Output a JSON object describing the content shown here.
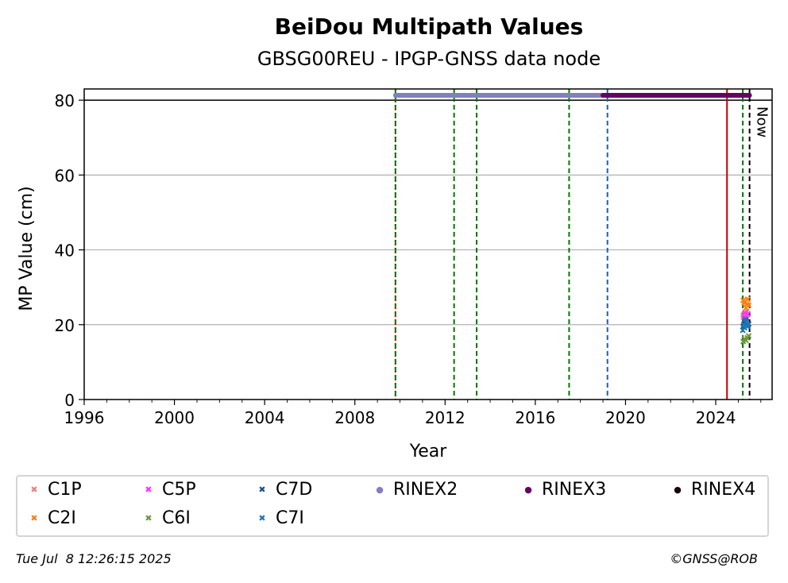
{
  "chart_data": {
    "type": "scatter",
    "title": "BeiDou Multipath Values",
    "subtitle": "GBSG00REU - IPGP-GNSS data node",
    "xlabel": "Year",
    "ylabel": "MP Value (cm)",
    "xlim": [
      1996,
      2026.5
    ],
    "ylim": [
      0,
      83
    ],
    "x_ticks": [
      "1996",
      "2000",
      "2004",
      "2008",
      "2012",
      "2016",
      "2020",
      "2024"
    ],
    "y_ticks": [
      "0",
      "20",
      "40",
      "60",
      "80"
    ],
    "grid": "y",
    "now_label": "Now",
    "vertical_lines": [
      {
        "x": 2009.8,
        "color": "#cc0000",
        "style": "dotted"
      },
      {
        "x": 2009.8,
        "color": "#007700",
        "style": "dashed"
      },
      {
        "x": 2012.4,
        "color": "#007700",
        "style": "dashed"
      },
      {
        "x": 2013.4,
        "color": "#007700",
        "style": "dashed"
      },
      {
        "x": 2017.5,
        "color": "#007700",
        "style": "dashed"
      },
      {
        "x": 2019.2,
        "color": "#1f5fa8",
        "style": "dashed"
      },
      {
        "x": 2024.5,
        "color": "#cc0000",
        "style": "solid"
      },
      {
        "x": 2025.2,
        "color": "#007700",
        "style": "dashed"
      },
      {
        "x": 2025.5,
        "color": "#000000",
        "style": "dashed"
      }
    ],
    "horizontal_lines": [
      {
        "y": 80,
        "color": "#000000"
      }
    ],
    "rinex_bars": [
      {
        "name": "RINEX2",
        "x_start": 2009.8,
        "x_end": 2019.2,
        "y": 81.3,
        "color": "#8080c0"
      },
      {
        "name": "RINEX3",
        "x_start": 2019.0,
        "x_end": 2025.5,
        "y": 81.3,
        "color": "#660066"
      }
    ],
    "series": [
      {
        "name": "C1P",
        "color": "#f08080",
        "marker": "x",
        "x": [
          2025.22,
          2025.28,
          2025.33,
          2025.38,
          2025.42
        ],
        "y": [
          22.5,
          23.0,
          22.0,
          23.5,
          22.8
        ]
      },
      {
        "name": "C2I",
        "color": "#ff7f0e",
        "marker": "x",
        "x": [
          2025.22,
          2025.26,
          2025.3,
          2025.34,
          2025.38,
          2025.42,
          2025.46
        ],
        "y": [
          26.5,
          25.8,
          26.2,
          24.5,
          25.5,
          26.8,
          25.2
        ]
      },
      {
        "name": "C5P",
        "color": "#ff33ff",
        "marker": "x",
        "x": [
          2025.24,
          2025.3,
          2025.36,
          2025.42
        ],
        "y": [
          22.0,
          23.2,
          21.5,
          22.8
        ]
      },
      {
        "name": "C6I",
        "color": "#6a9a3c",
        "marker": "x",
        "x": [
          2025.22,
          2025.28,
          2025.34,
          2025.4,
          2025.46
        ],
        "y": [
          15.5,
          16.2,
          15.8,
          16.5,
          17.0
        ]
      },
      {
        "name": "C7D",
        "color": "#1f4e8c",
        "marker": "x",
        "x": [
          2025.22,
          2025.28,
          2025.34,
          2025.4,
          2025.46
        ],
        "y": [
          19.5,
          20.5,
          21.0,
          19.8,
          20.2
        ]
      },
      {
        "name": "C7I",
        "color": "#1f77b4",
        "marker": "x",
        "x": [
          2025.2,
          2025.24,
          2025.28,
          2025.32,
          2025.36,
          2025.4,
          2025.44
        ],
        "y": [
          18.5,
          20.0,
          19.2,
          21.5,
          20.8,
          19.5,
          20.0
        ]
      }
    ],
    "legend": [
      {
        "label": "C1P",
        "color": "#f08080",
        "marker": "✖"
      },
      {
        "label": "C5P",
        "color": "#ff33ff",
        "marker": "✖"
      },
      {
        "label": "C7D",
        "color": "#1f4e8c",
        "marker": "✖"
      },
      {
        "label": "RINEX2",
        "color": "#8080c0",
        "marker": "●"
      },
      {
        "label": "RINEX3",
        "color": "#660066",
        "marker": "●"
      },
      {
        "label": "RINEX4",
        "color": "#1a0010",
        "marker": "●"
      },
      {
        "label": "C2I",
        "color": "#ff7f0e",
        "marker": "✖"
      },
      {
        "label": "C6I",
        "color": "#6a9a3c",
        "marker": "✖"
      },
      {
        "label": "C7I",
        "color": "#1f77b4",
        "marker": "✖"
      }
    ]
  },
  "footer": {
    "timestamp": "Tue Jul  8 12:26:15 2025",
    "credit": "©GNSS@ROB"
  }
}
